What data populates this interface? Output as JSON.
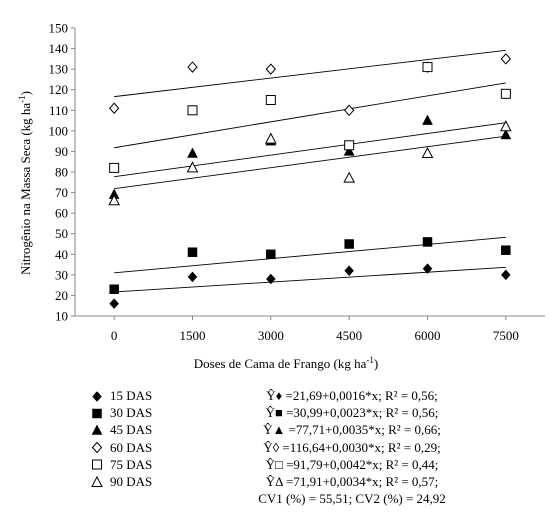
{
  "chart_data": {
    "type": "scatter",
    "xlabel": "Doses de Cama de Frango (kg ha-1)",
    "ylabel": "Nitrogênio na Massa Seca  (kg ha-1)",
    "x_ticks": [
      "0",
      "1500",
      "3000",
      "4500",
      "6000",
      "7500"
    ],
    "y_ticks": [
      "10",
      "20",
      "30",
      "40",
      "50",
      "60",
      "70",
      "80",
      "90",
      "100",
      "110",
      "120",
      "130",
      "140",
      "150"
    ],
    "x": [
      0,
      1500,
      3000,
      4500,
      6000,
      7500
    ],
    "xlim": [
      -750,
      8250
    ],
    "ylim": [
      10,
      150
    ],
    "grid": false,
    "legend_position": "bottom-left",
    "series": [
      {
        "name": "15 DAS",
        "marker": "diamond-filled",
        "values": [
          16,
          29,
          28,
          32,
          33,
          30
        ],
        "fit": {
          "intercept": 21.69,
          "slope": 0.0016
        }
      },
      {
        "name": "30 DAS",
        "marker": "square-filled",
        "values": [
          23,
          41,
          40,
          45,
          46,
          42
        ],
        "fit": {
          "intercept": 30.99,
          "slope": 0.0023
        }
      },
      {
        "name": "45 DAS",
        "marker": "triangle-filled",
        "values": [
          69,
          89,
          95,
          90,
          105,
          98
        ],
        "fit": {
          "intercept": 77.71,
          "slope": 0.0035
        }
      },
      {
        "name": "60 DAS",
        "marker": "diamond-open",
        "values": [
          111,
          131,
          130,
          110,
          131,
          135
        ],
        "fit": {
          "intercept": 116.64,
          "slope": 0.003
        }
      },
      {
        "name": "75 DAS",
        "marker": "square-open",
        "values": [
          82,
          110,
          115,
          93,
          131,
          118
        ],
        "fit": {
          "intercept": 91.79,
          "slope": 0.0042
        }
      },
      {
        "name": "90 DAS",
        "marker": "triangle-open",
        "values": [
          66,
          82,
          96,
          77,
          89,
          102
        ],
        "fit": {
          "intercept": 71.91,
          "slope": 0.0034
        }
      }
    ],
    "equations": [
      "Ŷ♦ =21,69+0,0016*x; R² = 0,56;",
      "Ŷ■ =30,99+0,0023*x; R² = 0,56;",
      "Ŷ▲ =77,71+0,0035*x; R² = 0,66;",
      "Ŷ◊ =116,64+0,0030*x; R² = 0,29;",
      "Ŷ□ =91,79+0,0042*x; R² = 0,44;",
      "ŶΔ =71,91+0,0034*x; R² = 0,57;",
      "CV1 (%) = 55,51; CV2 (%) = 24,92"
    ]
  }
}
